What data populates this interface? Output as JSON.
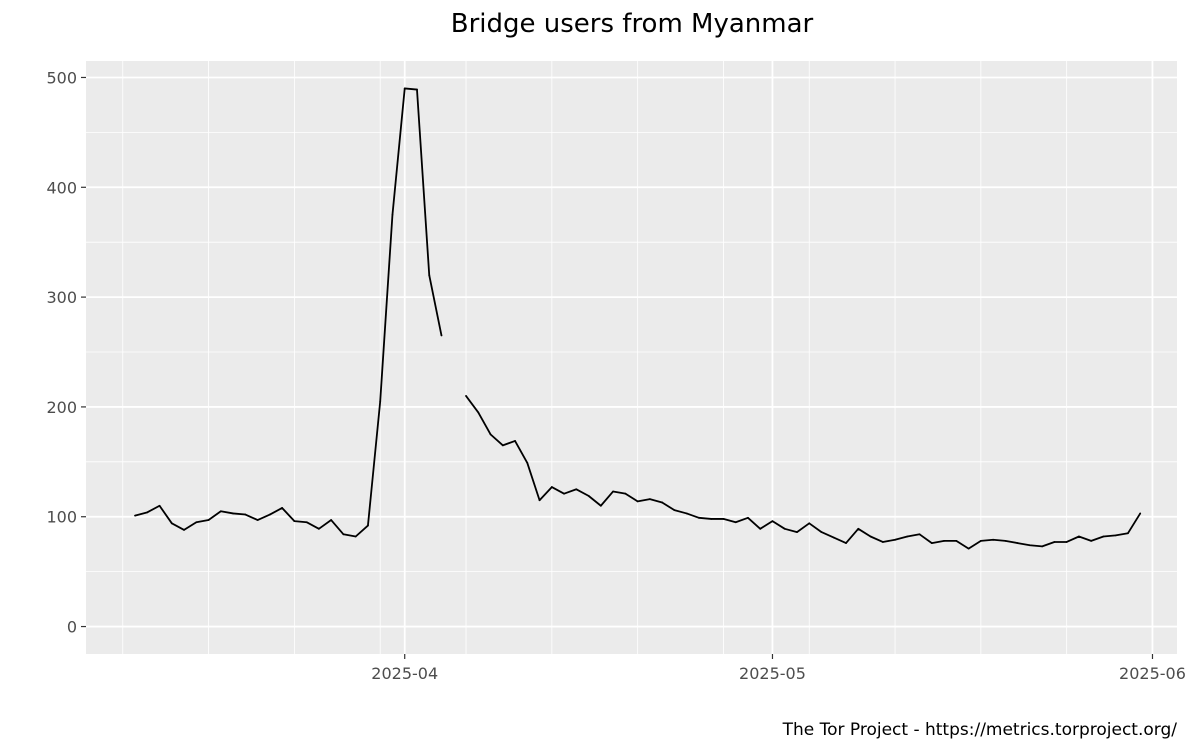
{
  "chart_data": {
    "type": "line",
    "title": "Bridge users from Myanmar",
    "caption": "The Tor Project - https://metrics.torproject.org/",
    "xlabel": "",
    "ylabel": "",
    "xlim": [
      "2025-03-06",
      "2025-06-03"
    ],
    "ylim": [
      -25,
      515
    ],
    "grid": true,
    "y_ticks": [
      0,
      100,
      200,
      300,
      400,
      500
    ],
    "y_tick_labels": [
      "0",
      "100",
      "200",
      "300",
      "400",
      "500"
    ],
    "x_ticks": [
      "2025-04-01",
      "2025-05-01",
      "2025-06-01"
    ],
    "x_tick_labels": [
      "2025-04",
      "2025-05",
      "2025-06"
    ],
    "x_minor_ticks": [
      "2025-03-09",
      "2025-03-16",
      "2025-03-23",
      "2025-03-30",
      "2025-04-06",
      "2025-04-13",
      "2025-04-20",
      "2025-04-27",
      "2025-05-04",
      "2025-05-11",
      "2025-05-18",
      "2025-05-25",
      "2025-06-01"
    ],
    "colors": {
      "line": "#000000",
      "panel": "#ebebeb",
      "grid": "#ffffff"
    },
    "series": [
      {
        "segments": [
          {
            "x": [
              "2025-03-10",
              "2025-03-11",
              "2025-03-12",
              "2025-03-13",
              "2025-03-14",
              "2025-03-15",
              "2025-03-16",
              "2025-03-17",
              "2025-03-18",
              "2025-03-19",
              "2025-03-20",
              "2025-03-21",
              "2025-03-22",
              "2025-03-23",
              "2025-03-24",
              "2025-03-25",
              "2025-03-26",
              "2025-03-27",
              "2025-03-28",
              "2025-03-29",
              "2025-03-30",
              "2025-03-31",
              "2025-04-01",
              "2025-04-02",
              "2025-04-03",
              "2025-04-04"
            ],
            "y": [
              101,
              104,
              110,
              94,
              88,
              95,
              97,
              105,
              103,
              102,
              97,
              102,
              108,
              96,
              95,
              89,
              97,
              84,
              82,
              92,
              205,
              375,
              490,
              489,
              320,
              265
            ]
          },
          {
            "x": [
              "2025-04-06",
              "2025-04-07",
              "2025-04-08",
              "2025-04-09",
              "2025-04-10",
              "2025-04-11",
              "2025-04-12",
              "2025-04-13",
              "2025-04-14",
              "2025-04-15",
              "2025-04-16",
              "2025-04-17",
              "2025-04-18",
              "2025-04-19",
              "2025-04-20",
              "2025-04-21",
              "2025-04-22",
              "2025-04-23",
              "2025-04-24",
              "2025-04-25",
              "2025-04-26",
              "2025-04-27",
              "2025-04-28",
              "2025-04-29",
              "2025-04-30",
              "2025-05-01",
              "2025-05-02",
              "2025-05-03",
              "2025-05-04",
              "2025-05-05",
              "2025-05-06",
              "2025-05-07",
              "2025-05-08",
              "2025-05-09",
              "2025-05-10",
              "2025-05-11",
              "2025-05-12",
              "2025-05-13",
              "2025-05-14",
              "2025-05-15",
              "2025-05-16",
              "2025-05-17",
              "2025-05-18",
              "2025-05-19",
              "2025-05-20",
              "2025-05-21",
              "2025-05-22",
              "2025-05-23",
              "2025-05-24",
              "2025-05-25",
              "2025-05-26",
              "2025-05-27",
              "2025-05-28",
              "2025-05-29",
              "2025-05-30",
              "2025-05-31"
            ],
            "y": [
              210,
              195,
              175,
              165,
              169,
              149,
              115,
              127,
              121,
              125,
              119,
              110,
              123,
              121,
              114,
              116,
              113,
              106,
              103,
              99,
              98,
              98,
              95,
              99,
              89,
              96,
              89,
              86,
              94,
              86,
              81,
              76,
              89,
              82,
              77,
              79,
              82,
              84,
              76,
              78,
              78,
              71,
              78,
              79,
              78,
              76,
              74,
              73,
              77,
              77,
              82,
              78,
              82,
              83,
              85,
              103
            ]
          }
        ]
      }
    ]
  }
}
